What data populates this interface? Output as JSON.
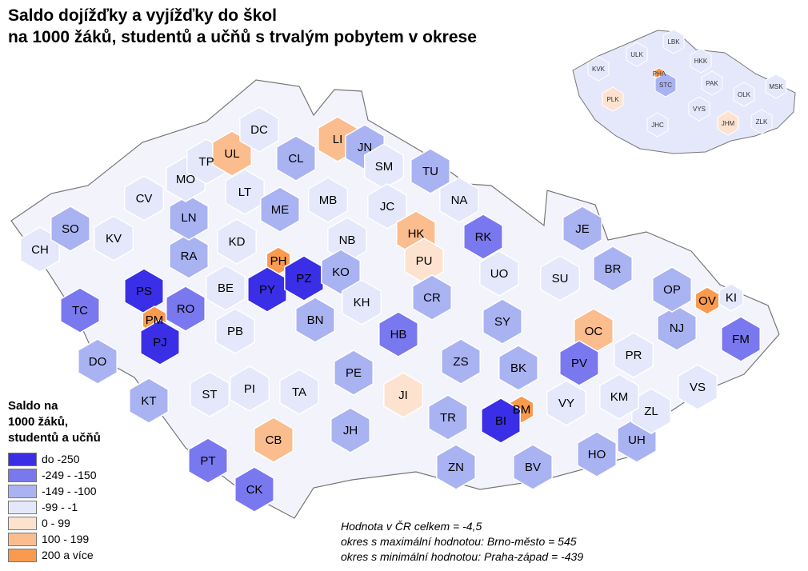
{
  "title": {
    "line1": "Saldo dojížďky a vyjížďky do škol",
    "line2": "na 1000 žáků, studentů a učňů s trvalým pobytem v okrese"
  },
  "legend": {
    "title_line1": "Saldo na",
    "title_line2": "1000 žáků,",
    "title_line3": "studentů a učňů",
    "classes": [
      {
        "label": "do -250",
        "color": "#3a2ee6"
      },
      {
        "label": "-249 - -150",
        "color": "#7a78ee"
      },
      {
        "label": "-149 - -100",
        "color": "#a9b3f2"
      },
      {
        "label": "-99 - -1",
        "color": "#e4e8fa"
      },
      {
        "label": "0 - 99",
        "color": "#fde3cf"
      },
      {
        "label": "100 - 199",
        "color": "#fbbd8e"
      },
      {
        "label": "200 a více",
        "color": "#f99a4e"
      }
    ]
  },
  "notes": {
    "line1": "Hodnota v ČR celkem = -4,5",
    "line2": "okres s maximální hodnotou: Brno-město = 545",
    "line3": "okres s minimální hodnotou: Praha-západ = -439"
  },
  "districts": [
    {
      "code": "CH",
      "class": 3
    },
    {
      "code": "SO",
      "class": 2
    },
    {
      "code": "KV",
      "class": 3
    },
    {
      "code": "TC",
      "class": 1
    },
    {
      "code": "PS",
      "class": 0
    },
    {
      "code": "PM",
      "class": 6
    },
    {
      "code": "RO",
      "class": 1
    },
    {
      "code": "PJ",
      "class": 0
    },
    {
      "code": "DO",
      "class": 2
    },
    {
      "code": "KT",
      "class": 2
    },
    {
      "code": "PT",
      "class": 1
    },
    {
      "code": "CK",
      "class": 1
    },
    {
      "code": "CB",
      "class": 5
    },
    {
      "code": "ST",
      "class": 3
    },
    {
      "code": "PI",
      "class": 3
    },
    {
      "code": "TA",
      "class": 3
    },
    {
      "code": "PB",
      "class": 3
    },
    {
      "code": "BE",
      "class": 3
    },
    {
      "code": "RA",
      "class": 2
    },
    {
      "code": "KD",
      "class": 3
    },
    {
      "code": "LN",
      "class": 2
    },
    {
      "code": "CV",
      "class": 3
    },
    {
      "code": "MO",
      "class": 3
    },
    {
      "code": "TP",
      "class": 3
    },
    {
      "code": "UL",
      "class": 5
    },
    {
      "code": "DC",
      "class": 3
    },
    {
      "code": "LT",
      "class": 3
    },
    {
      "code": "ME",
      "class": 2
    },
    {
      "code": "CL",
      "class": 2
    },
    {
      "code": "LI",
      "class": 5
    },
    {
      "code": "JN",
      "class": 2
    },
    {
      "code": "MB",
      "class": 3
    },
    {
      "code": "SM",
      "class": 3
    },
    {
      "code": "TU",
      "class": 2
    },
    {
      "code": "JC",
      "class": 3
    },
    {
      "code": "NA",
      "class": 3
    },
    {
      "code": "NB",
      "class": 3
    },
    {
      "code": "PH",
      "class": 6
    },
    {
      "code": "PY",
      "class": 0
    },
    {
      "code": "PZ",
      "class": 0
    },
    {
      "code": "KO",
      "class": 2
    },
    {
      "code": "KH",
      "class": 3
    },
    {
      "code": "BN",
      "class": 2
    },
    {
      "code": "HK",
      "class": 5
    },
    {
      "code": "PU",
      "class": 4
    },
    {
      "code": "RK",
      "class": 1
    },
    {
      "code": "CR",
      "class": 2
    },
    {
      "code": "HB",
      "class": 1
    },
    {
      "code": "PE",
      "class": 2
    },
    {
      "code": "JI",
      "class": 4
    },
    {
      "code": "JH",
      "class": 2
    },
    {
      "code": "ZS",
      "class": 2
    },
    {
      "code": "TR",
      "class": 2
    },
    {
      "code": "ZN",
      "class": 2
    },
    {
      "code": "SY",
      "class": 2
    },
    {
      "code": "UO",
      "class": 3
    },
    {
      "code": "SU",
      "class": 3
    },
    {
      "code": "JE",
      "class": 2
    },
    {
      "code": "BR",
      "class": 2
    },
    {
      "code": "OC",
      "class": 5
    },
    {
      "code": "BK",
      "class": 2
    },
    {
      "code": "PV",
      "class": 1
    },
    {
      "code": "BM",
      "class": 6
    },
    {
      "code": "BI",
      "class": 0
    },
    {
      "code": "VY",
      "class": 3
    },
    {
      "code": "BV",
      "class": 2
    },
    {
      "code": "HO",
      "class": 2
    },
    {
      "code": "UH",
      "class": 2
    },
    {
      "code": "ZL",
      "class": 3
    },
    {
      "code": "KM",
      "class": 3
    },
    {
      "code": "PR",
      "class": 3
    },
    {
      "code": "VS",
      "class": 3
    },
    {
      "code": "NJ",
      "class": 2
    },
    {
      "code": "OP",
      "class": 2
    },
    {
      "code": "OV",
      "class": 6
    },
    {
      "code": "KI",
      "class": 3
    },
    {
      "code": "FM",
      "class": 1
    }
  ],
  "regions": [
    {
      "code": "LBK"
    },
    {
      "code": "ULK"
    },
    {
      "code": "HKK"
    },
    {
      "code": "KVK"
    },
    {
      "code": "PHA"
    },
    {
      "code": "STC"
    },
    {
      "code": "PAK"
    },
    {
      "code": "MSK"
    },
    {
      "code": "PLK"
    },
    {
      "code": "VYS"
    },
    {
      "code": "OLK"
    },
    {
      "code": "JHC"
    },
    {
      "code": "JHM"
    },
    {
      "code": "ZLK"
    }
  ]
}
